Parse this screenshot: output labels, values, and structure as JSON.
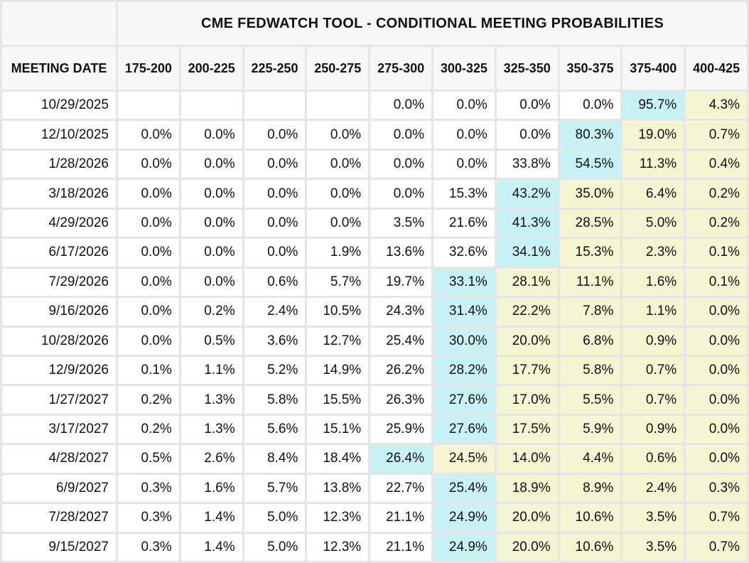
{
  "title": "CME FEDWATCH TOOL - CONDITIONAL MEETING PROBABILITIES",
  "columns": {
    "meeting_date_label": "MEETING DATE",
    "bins": [
      "175-200",
      "200-225",
      "225-250",
      "250-275",
      "275-300",
      "300-325",
      "325-350",
      "350-375",
      "375-400",
      "400-425"
    ]
  },
  "colors": {
    "max_probability_highlight": "#c8f2f6",
    "right_tail_highlight": "#f5f5d3",
    "cell_background": "#ffffff",
    "header_background": "#f7f7f7",
    "gridline": "#e5e5e8"
  },
  "table": {
    "rows": [
      {
        "date": "10/29/2025",
        "values": [
          "",
          "",
          "",
          "",
          "0.0%",
          "0.0%",
          "0.0%",
          "0.0%",
          "95.7%",
          "4.3%"
        ]
      },
      {
        "date": "12/10/2025",
        "values": [
          "0.0%",
          "0.0%",
          "0.0%",
          "0.0%",
          "0.0%",
          "0.0%",
          "0.0%",
          "80.3%",
          "19.0%",
          "0.7%"
        ]
      },
      {
        "date": "1/28/2026",
        "values": [
          "0.0%",
          "0.0%",
          "0.0%",
          "0.0%",
          "0.0%",
          "0.0%",
          "33.8%",
          "54.5%",
          "11.3%",
          "0.4%"
        ]
      },
      {
        "date": "3/18/2026",
        "values": [
          "0.0%",
          "0.0%",
          "0.0%",
          "0.0%",
          "0.0%",
          "15.3%",
          "43.2%",
          "35.0%",
          "6.4%",
          "0.2%"
        ]
      },
      {
        "date": "4/29/2026",
        "values": [
          "0.0%",
          "0.0%",
          "0.0%",
          "0.0%",
          "3.5%",
          "21.6%",
          "41.3%",
          "28.5%",
          "5.0%",
          "0.2%"
        ]
      },
      {
        "date": "6/17/2026",
        "values": [
          "0.0%",
          "0.0%",
          "0.0%",
          "1.9%",
          "13.6%",
          "32.6%",
          "34.1%",
          "15.3%",
          "2.3%",
          "0.1%"
        ]
      },
      {
        "date": "7/29/2026",
        "values": [
          "0.0%",
          "0.0%",
          "0.6%",
          "5.7%",
          "19.7%",
          "33.1%",
          "28.1%",
          "11.1%",
          "1.6%",
          "0.1%"
        ]
      },
      {
        "date": "9/16/2026",
        "values": [
          "0.0%",
          "0.2%",
          "2.4%",
          "10.5%",
          "24.3%",
          "31.4%",
          "22.2%",
          "7.8%",
          "1.1%",
          "0.0%"
        ]
      },
      {
        "date": "10/28/2026",
        "values": [
          "0.0%",
          "0.5%",
          "3.6%",
          "12.7%",
          "25.4%",
          "30.0%",
          "20.0%",
          "6.8%",
          "0.9%",
          "0.0%"
        ]
      },
      {
        "date": "12/9/2026",
        "values": [
          "0.1%",
          "1.1%",
          "5.2%",
          "14.9%",
          "26.2%",
          "28.2%",
          "17.7%",
          "5.8%",
          "0.7%",
          "0.0%"
        ]
      },
      {
        "date": "1/27/2027",
        "values": [
          "0.2%",
          "1.3%",
          "5.8%",
          "15.5%",
          "26.3%",
          "27.6%",
          "17.0%",
          "5.5%",
          "0.7%",
          "0.0%"
        ]
      },
      {
        "date": "3/17/2027",
        "values": [
          "0.2%",
          "1.3%",
          "5.6%",
          "15.1%",
          "25.9%",
          "27.6%",
          "17.5%",
          "5.9%",
          "0.9%",
          "0.0%"
        ]
      },
      {
        "date": "4/28/2027",
        "values": [
          "0.5%",
          "2.6%",
          "8.4%",
          "18.4%",
          "26.4%",
          "24.5%",
          "14.0%",
          "4.4%",
          "0.6%",
          "0.0%"
        ]
      },
      {
        "date": "6/9/2027",
        "values": [
          "0.3%",
          "1.6%",
          "5.7%",
          "13.8%",
          "22.7%",
          "25.4%",
          "18.9%",
          "8.9%",
          "2.4%",
          "0.3%"
        ]
      },
      {
        "date": "7/28/2027",
        "values": [
          "0.3%",
          "1.4%",
          "5.0%",
          "12.3%",
          "21.1%",
          "24.9%",
          "20.0%",
          "10.6%",
          "3.5%",
          "0.7%"
        ]
      },
      {
        "date": "9/15/2027",
        "values": [
          "0.3%",
          "1.4%",
          "5.0%",
          "12.3%",
          "21.1%",
          "24.9%",
          "20.0%",
          "10.6%",
          "3.5%",
          "0.7%"
        ]
      }
    ]
  }
}
